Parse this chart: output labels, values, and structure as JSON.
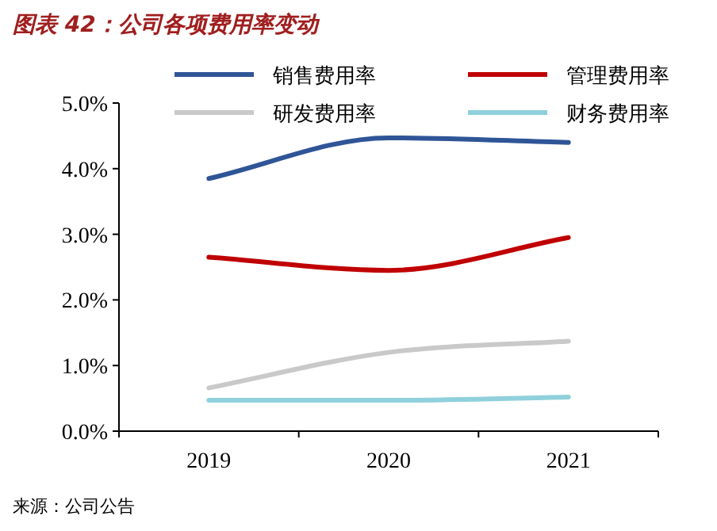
{
  "chart_data": {
    "type": "line",
    "title": "图表 42：公司各项费用率变动",
    "categories": [
      "2019",
      "2020",
      "2021"
    ],
    "series": [
      {
        "name": "销售费用率",
        "color": "#2f5597",
        "values": [
          3.85,
          4.47,
          4.4
        ]
      },
      {
        "name": "管理费用率",
        "color": "#c00000",
        "values": [
          2.65,
          2.45,
          2.95
        ]
      },
      {
        "name": "研发费用率",
        "color": "#c9c9c9",
        "values": [
          0.66,
          1.2,
          1.37
        ]
      },
      {
        "name": "财务费用率",
        "color": "#8fd0dc",
        "values": [
          0.47,
          0.47,
          0.52
        ]
      }
    ],
    "ylim": [
      0,
      5
    ],
    "yticks": [
      {
        "value": 0,
        "label": "0.0%"
      },
      {
        "value": 1,
        "label": "1.0%"
      },
      {
        "value": 2,
        "label": "2.0%"
      },
      {
        "value": 3,
        "label": "3.0%"
      },
      {
        "value": 4,
        "label": "4.0%"
      },
      {
        "value": 5,
        "label": "5.0%"
      }
    ],
    "legend": "top",
    "grid": false,
    "marker": "none",
    "line_style": "solid",
    "annotations": [
      "来源：公司公告"
    ]
  }
}
